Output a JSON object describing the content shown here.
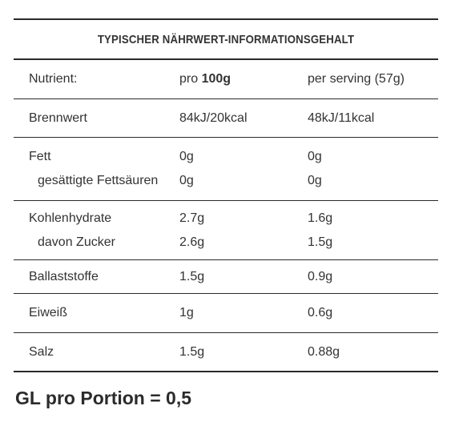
{
  "table": {
    "title": "TYPISCHER NÄHRWERT-INFORMATIONSGEHALT",
    "header": {
      "nutrient": "Nutrient:",
      "per100_prefix": "pro ",
      "per100_bold": "100g",
      "per_serving": "per serving (57g)"
    },
    "rows": {
      "brennwert": {
        "label": "Brennwert",
        "per100": "84kJ/20kcal",
        "serving": "48kJ/11kcal"
      },
      "fett": {
        "label": "Fett",
        "per100": "0g",
        "serving": "0g"
      },
      "gesaettigte": {
        "label": "gesättigte Fettsäuren",
        "per100": "0g",
        "serving": "0g"
      },
      "kohlenhydrate": {
        "label": "Kohlenhydrate",
        "per100": "2.7g",
        "serving": "1.6g"
      },
      "zucker": {
        "label": "davon Zucker",
        "per100": "2.6g",
        "serving": "1.5g"
      },
      "ballaststoffe": {
        "label": "Ballaststoffe",
        "per100": "1.5g",
        "serving": "0.9g"
      },
      "eiweiss": {
        "label": "Eiweiß",
        "per100": "1g",
        "serving": "0.6g"
      },
      "salz": {
        "label": "Salz",
        "per100": "1.5g",
        "serving": "0.88g"
      }
    }
  },
  "gl_note": "GL pro Portion = 0,5"
}
